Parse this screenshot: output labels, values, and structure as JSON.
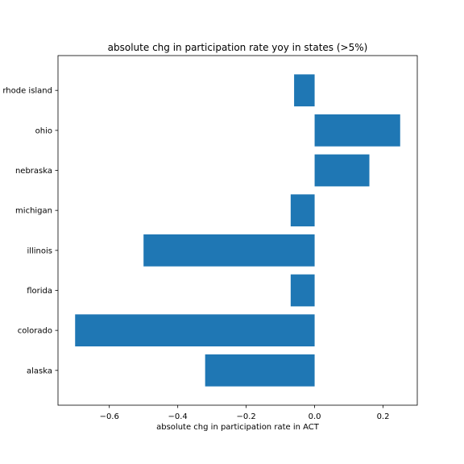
{
  "chart_data": {
    "type": "bar",
    "orientation": "horizontal",
    "title": "absolute chg in participation rate yoy in states (>5%)",
    "xlabel": "absolute chg in participation rate in ACT",
    "ylabel": "",
    "categories": [
      "alaska",
      "colorado",
      "florida",
      "illinois",
      "michigan",
      "nebraska",
      "ohio",
      "rhode island"
    ],
    "values": [
      -0.32,
      -0.7,
      -0.07,
      -0.5,
      -0.07,
      0.16,
      0.25,
      -0.06
    ],
    "xlim": [
      -0.75,
      0.3
    ],
    "xticks": [
      -0.6,
      -0.4,
      -0.2,
      0.0,
      0.2
    ],
    "xtick_labels": [
      "−0.6",
      "−0.4",
      "−0.2",
      "0.0",
      "0.2"
    ],
    "bar_color": "#1f77b4",
    "grid": false,
    "legend": null
  }
}
